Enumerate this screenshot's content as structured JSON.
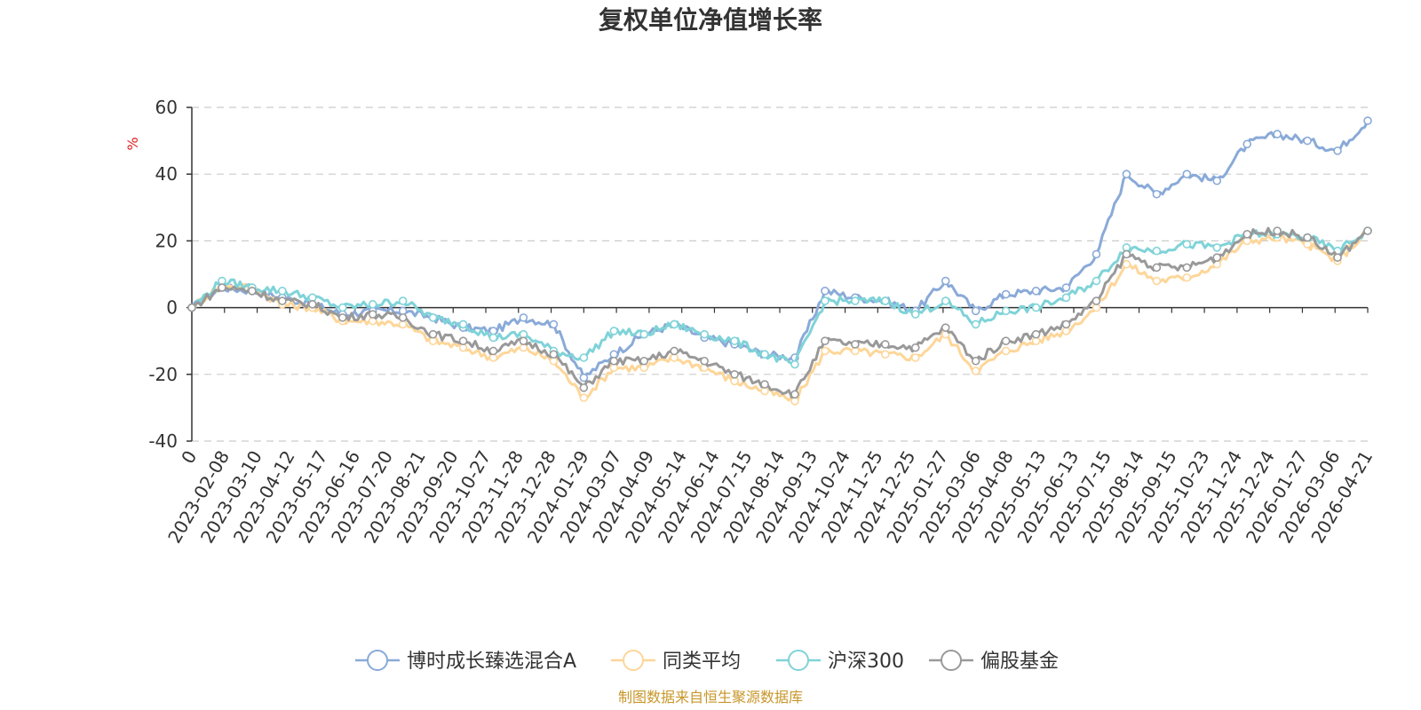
{
  "colors": {
    "fund": "#8aaad8",
    "peer": "#fdd699",
    "hs300": "#7fd3d8",
    "equity": "#999999",
    "grid": "#cccccc",
    "axis": "#333333",
    "source": "#c8962a",
    "unit": "#e02020"
  },
  "chart_data": {
    "type": "line",
    "title": "复权单位净值增长率",
    "ylabel": "%",
    "ylim": [
      -40,
      60
    ],
    "yticks": [
      -40,
      -20,
      0,
      20,
      40,
      60
    ],
    "grid": true,
    "legend_position": "bottom",
    "x_tick_labels": [
      "0",
      "2023-02-08",
      "2023-03-10",
      "2023-04-12",
      "2023-05-17",
      "2023-06-16",
      "2023-07-20",
      "2023-08-21",
      "2023-09-20",
      "2023-10-27",
      "2023-11-28",
      "2023-12-28",
      "2024-01-29",
      "2024-03-07",
      "2024-04-09",
      "2024-05-14",
      "2024-06-14",
      "2024-07-15",
      "2024-08-14",
      "2024-09-13",
      "2024-10-24",
      "2024-11-25",
      "2024-12-25",
      "2025-01-27",
      "2025-03-06",
      "2025-04-08",
      "2025-05-13",
      "2025-06-13",
      "2025-07-15",
      "2025-08-14",
      "2025-09-15",
      "2025-10-23",
      "2025-11-24",
      "2025-12-24",
      "2026-01-27",
      "2026-03-06",
      "2026-04-21"
    ],
    "series": [
      {
        "name": "博时成长臻选混合A",
        "color_key": "fund",
        "values": [
          0,
          6,
          5,
          3,
          1,
          -2,
          -1,
          -1,
          -3,
          -6,
          -7,
          -3,
          -5,
          -21,
          -14,
          -8,
          -5,
          -9,
          -11,
          -14,
          -15,
          5,
          3,
          2,
          -1,
          8,
          -1,
          4,
          5,
          6,
          16,
          40,
          34,
          40,
          38,
          49,
          52,
          50,
          47,
          56
        ]
      },
      {
        "name": "同类平均",
        "color_key": "peer",
        "values": [
          0,
          7,
          6,
          1,
          0,
          -4,
          -4,
          -5,
          -10,
          -12,
          -15,
          -12,
          -16,
          -27,
          -18,
          -18,
          -15,
          -18,
          -22,
          -25,
          -28,
          -13,
          -13,
          -14,
          -15,
          -8,
          -19,
          -13,
          -10,
          -7,
          0,
          13,
          8,
          9,
          13,
          20,
          21,
          19,
          14,
          23
        ]
      },
      {
        "name": "沪深300",
        "color_key": "hs300",
        "values": [
          0,
          8,
          6,
          5,
          3,
          0,
          1,
          2,
          -3,
          -5,
          -9,
          -8,
          -13,
          -15,
          -7,
          -8,
          -5,
          -8,
          -10,
          -14,
          -17,
          2,
          2,
          2,
          -2,
          2,
          -5,
          -1,
          0,
          3,
          8,
          18,
          17,
          19,
          18,
          22,
          22,
          21,
          17,
          23
        ]
      },
      {
        "name": "偏股基金",
        "color_key": "equity",
        "values": [
          0,
          6,
          5,
          2,
          1,
          -3,
          -2,
          -3,
          -8,
          -10,
          -13,
          -10,
          -14,
          -24,
          -16,
          -16,
          -13,
          -16,
          -20,
          -23,
          -26,
          -10,
          -11,
          -11,
          -12,
          -6,
          -16,
          -10,
          -8,
          -5,
          2,
          16,
          12,
          12,
          15,
          22,
          23,
          21,
          15,
          23
        ]
      }
    ]
  },
  "source": {
    "text": "制图数据来自恒生聚源数据库"
  }
}
